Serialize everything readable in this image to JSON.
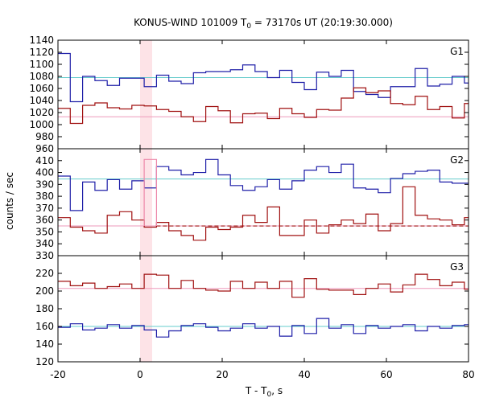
{
  "chart_data": {
    "type": "line",
    "title_main": "KONUS-WIND 101009 T",
    "title_sub": "0",
    "title_rest": " = 73170s UT (20:19:30.000)",
    "ylabel": "counts / sec",
    "xlabel_main": "T - T",
    "xlabel_sub": "0",
    "xlabel_rest": ", s",
    "x_range": [
      -20,
      80
    ],
    "x_ticks": [
      -20,
      0,
      20,
      40,
      60,
      80
    ],
    "highlight_interval": [
      0,
      2.944
    ],
    "colors": {
      "blue": "#1f1fa8",
      "red": "#a01010",
      "cyan_line": "#66cccc",
      "pink_line": "#ee99bb",
      "highlight": "#fde3e7",
      "pink_outline": "#ee88aa"
    },
    "panels": [
      {
        "name": "G1",
        "ylim": [
          960,
          1140
        ],
        "y_ticks": [
          960,
          980,
          1000,
          1020,
          1040,
          1060,
          1080,
          1100,
          1120,
          1140
        ],
        "bin_edges": [
          -20,
          -17,
          -14,
          -11,
          -8,
          -5,
          -2,
          1,
          4,
          7,
          10,
          13,
          16,
          19,
          22,
          25,
          28,
          31,
          34,
          37,
          40,
          43,
          46,
          49,
          52,
          55,
          58,
          61,
          64,
          67,
          70,
          73,
          76,
          79,
          80
        ],
        "series": [
          {
            "name": "blue",
            "color": "blue",
            "values": [
              1118,
              1038,
              1080,
              1073,
              1065,
              1077,
              1077,
              1063,
              1082,
              1072,
              1068,
              1086,
              1088,
              1088,
              1091,
              1099,
              1088,
              1078,
              1090,
              1070,
              1058,
              1087,
              1080,
              1090,
              1055,
              1050,
              1045,
              1063,
              1063,
              1093,
              1064,
              1067,
              1080,
              1069
            ],
            "mean": 1078
          },
          {
            "name": "red",
            "color": "red",
            "values": [
              1027,
              1002,
              1032,
              1036,
              1028,
              1026,
              1032,
              1031,
              1025,
              1022,
              1013,
              1005,
              1030,
              1023,
              1003,
              1018,
              1019,
              1010,
              1027,
              1018,
              1012,
              1025,
              1024,
              1044,
              1061,
              1053,
              1056,
              1035,
              1033,
              1047,
              1025,
              1030,
              1011,
              1035
            ],
            "mean": 1013
          }
        ]
      },
      {
        "name": "G2",
        "ylim": [
          330,
          420
        ],
        "y_ticks": [
          330,
          340,
          350,
          360,
          370,
          380,
          390,
          400,
          410
        ],
        "bin_edges": [
          -20,
          -17,
          -14,
          -11,
          -8,
          -5,
          -2,
          1,
          4,
          7,
          10,
          13,
          16,
          19,
          22,
          25,
          28,
          31,
          34,
          37,
          40,
          43,
          46,
          49,
          52,
          55,
          58,
          61,
          64,
          67,
          70,
          73,
          76,
          79,
          80
        ],
        "series": [
          {
            "name": "blue",
            "color": "blue",
            "values": [
              397,
              368,
              392,
              385,
              394,
              386,
              393,
              387,
              405,
              402,
              398,
              400,
              411,
              398,
              389,
              385,
              388,
              394,
              386,
              393,
              402,
              405,
              400,
              407,
              387,
              386,
              383,
              395,
              399,
              401,
              402,
              392,
              391,
              391
            ],
            "mean": 394.5
          },
          {
            "name": "red",
            "color": "red",
            "values": [
              362,
              354,
              351,
              349,
              364,
              367,
              360,
              354,
              358,
              351,
              347,
              343,
              354,
              352,
              354,
              364,
              358,
              371,
              347,
              347,
              360,
              349,
              356,
              360,
              357,
              365,
              351,
              357,
              388,
              364,
              361,
              360,
              356,
              362
            ],
            "mean": 355
          },
          {
            "name": "pink_box",
            "color": "pink_outline",
            "values": [
              411
            ],
            "x_start": 1,
            "x_end": 4,
            "base": 355
          }
        ]
      },
      {
        "name": "G3",
        "ylim": [
          120,
          240
        ],
        "y_ticks": [
          120,
          140,
          160,
          180,
          200,
          220
        ],
        "bin_edges": [
          -20,
          -17,
          -14,
          -11,
          -8,
          -5,
          -2,
          1,
          4,
          7,
          10,
          13,
          16,
          19,
          22,
          25,
          28,
          31,
          34,
          37,
          40,
          43,
          46,
          49,
          52,
          55,
          58,
          61,
          64,
          67,
          70,
          73,
          76,
          79,
          80
        ],
        "series": [
          {
            "name": "red",
            "color": "red",
            "values": [
              211,
              206,
              209,
              203,
              205,
              208,
              203,
              219,
              218,
              203,
              212,
              203,
              201,
              200,
              211,
              203,
              210,
              203,
              211,
              193,
              214,
              202,
              201,
              201,
              196,
              203,
              208,
              199,
              207,
              219,
              213,
              206,
              210,
              202
            ],
            "mean": 203
          },
          {
            "name": "blue",
            "color": "blue",
            "values": [
              159,
              163,
              156,
              158,
              162,
              158,
              161,
              156,
              148,
              155,
              161,
              163,
              159,
              155,
              158,
              163,
              158,
              160,
              149,
              161,
              152,
              169,
              158,
              162,
              152,
              161,
              158,
              160,
              162,
              155,
              160,
              158,
              161,
              162
            ],
            "mean": 160
          }
        ]
      }
    ]
  }
}
